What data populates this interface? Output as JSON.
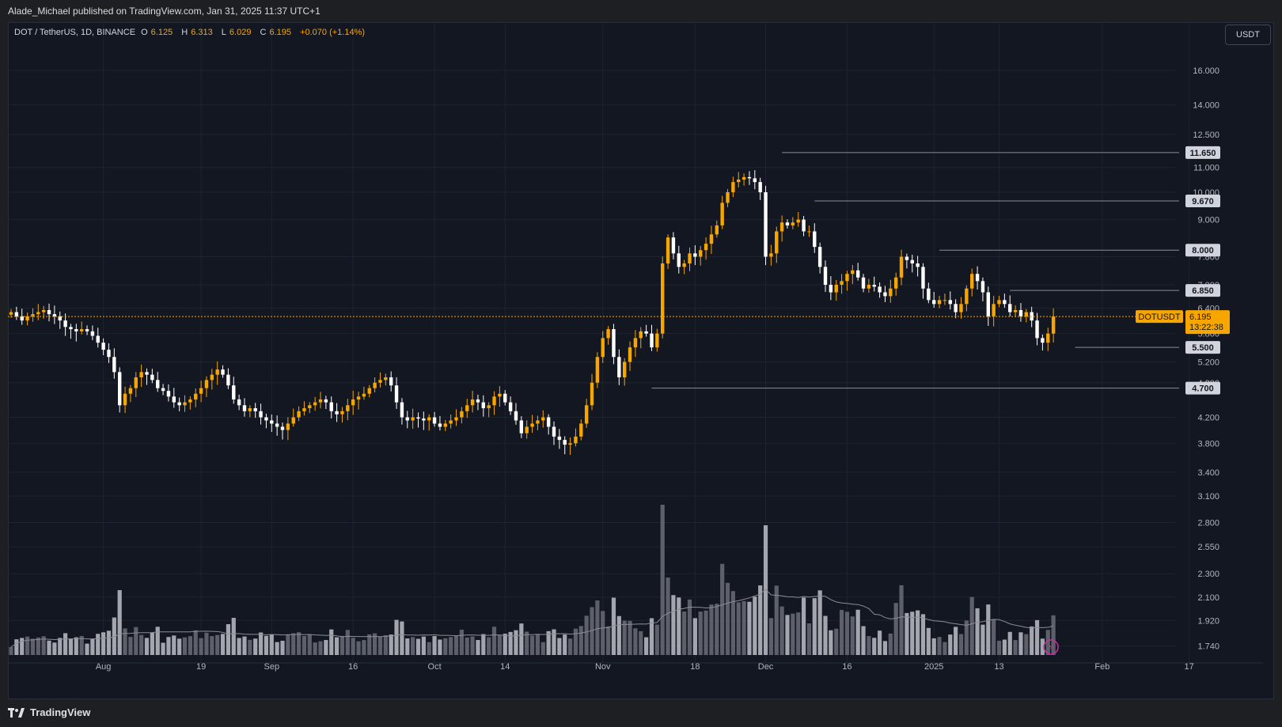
{
  "header": {
    "published_text": "Alade_Michael published on TradingView.com, Jan 31, 2025 11:37 UTC+1"
  },
  "legend": {
    "symbol": "DOT / TetherUS, 1D, BINANCE",
    "open_label": "O",
    "open": "6.125",
    "high_label": "H",
    "high": "6.313",
    "low_label": "L",
    "low": "6.029",
    "close_label": "C",
    "close": "6.195",
    "change": "+0.070 (+1.14%)"
  },
  "currency_button": "USDT",
  "footer": {
    "brand": "TradingView"
  },
  "colors": {
    "up": "#f7a600",
    "down": "#ffffff",
    "background": "#131722",
    "grid": "#1f2331",
    "level_line": "#8a8d96",
    "current_price": "#f7a600"
  },
  "chart_data": {
    "type": "candlestick",
    "symbol": "DOTUSDT",
    "y_scale": "log",
    "ylim": [
      1.64,
      18.4
    ],
    "y_ticks": [
      "16.000",
      "14.000",
      "12.500",
      "11.000",
      "10.000",
      "9.000",
      "7.800",
      "7.000",
      "6.400",
      "5.800",
      "5.200",
      "4.800",
      "4.200",
      "3.800",
      "3.400",
      "3.100",
      "2.800",
      "2.550",
      "2.300",
      "2.100",
      "1.920",
      "1.740"
    ],
    "x_tick_labels": [
      {
        "label": "Aug",
        "date": "2024-08-01"
      },
      {
        "label": "19",
        "date": "2024-08-19"
      },
      {
        "label": "Sep",
        "date": "2024-09-01"
      },
      {
        "label": "16",
        "date": "2024-09-16"
      },
      {
        "label": "Oct",
        "date": "2024-10-01"
      },
      {
        "label": "14",
        "date": "2024-10-14"
      },
      {
        "label": "Nov",
        "date": "2024-11-01"
      },
      {
        "label": "18",
        "date": "2024-11-18"
      },
      {
        "label": "Dec",
        "date": "2024-12-01"
      },
      {
        "label": "16",
        "date": "2024-12-16"
      },
      {
        "label": "2025",
        "date": "2025-01-01"
      },
      {
        "label": "13",
        "date": "2025-01-13"
      },
      {
        "label": "Feb",
        "date": "2025-02-01"
      },
      {
        "label": "17",
        "date": "2025-02-17"
      }
    ],
    "first_date": "2024-07-15",
    "last_date": "2025-01-31",
    "levels": [
      {
        "value": 11.65,
        "label": "11.650",
        "from_date": "2024-12-04"
      },
      {
        "value": 9.67,
        "label": "9.670",
        "from_date": "2024-12-10"
      },
      {
        "value": 8.0,
        "label": "8.000",
        "from_date": "2025-01-02"
      },
      {
        "value": 6.85,
        "label": "6.850",
        "from_date": "2025-01-15"
      },
      {
        "value": 5.5,
        "label": "5.500",
        "from_date": "2025-01-27"
      },
      {
        "value": 4.7,
        "label": "4.700",
        "from_date": "2024-11-10"
      }
    ],
    "current_price": {
      "ticker": "DOTUSDT",
      "value": "6.195",
      "countdown": "13:22:38"
    },
    "closes": [
      6.3,
      6.2,
      6.1,
      6.2,
      6.25,
      6.3,
      6.35,
      6.25,
      6.2,
      6.1,
      5.95,
      5.9,
      5.85,
      5.9,
      5.85,
      5.75,
      5.6,
      5.45,
      5.3,
      5.0,
      4.4,
      4.6,
      4.7,
      4.9,
      5.0,
      4.95,
      4.85,
      4.7,
      4.65,
      4.55,
      4.45,
      4.4,
      4.45,
      4.5,
      4.6,
      4.7,
      4.85,
      4.95,
      5.05,
      4.95,
      4.75,
      4.5,
      4.4,
      4.3,
      4.35,
      4.3,
      4.2,
      4.15,
      4.1,
      4.05,
      4.0,
      4.1,
      4.2,
      4.3,
      4.35,
      4.4,
      4.45,
      4.5,
      4.45,
      4.3,
      4.25,
      4.3,
      4.4,
      4.5,
      4.55,
      4.6,
      4.7,
      4.8,
      4.85,
      4.9,
      4.75,
      4.45,
      4.2,
      4.15,
      4.2,
      4.18,
      4.15,
      4.2,
      4.1,
      4.05,
      4.1,
      4.15,
      4.2,
      4.3,
      4.4,
      4.5,
      4.45,
      4.35,
      4.4,
      4.55,
      4.6,
      4.45,
      4.3,
      4.15,
      3.95,
      4.05,
      4.1,
      4.15,
      4.2,
      4.05,
      3.9,
      3.85,
      3.78,
      3.8,
      3.9,
      4.1,
      4.4,
      4.8,
      5.3,
      5.7,
      5.9,
      5.3,
      4.9,
      5.2,
      5.5,
      5.7,
      5.85,
      5.8,
      5.5,
      5.8,
      7.6,
      8.4,
      7.9,
      7.5,
      7.6,
      7.9,
      7.8,
      8.0,
      8.2,
      8.5,
      8.8,
      9.6,
      10.0,
      10.4,
      10.5,
      10.6,
      10.55,
      10.4,
      10.0,
      7.8,
      7.9,
      8.6,
      8.9,
      8.8,
      8.9,
      9.0,
      8.6,
      8.6,
      8.1,
      7.5,
      7.0,
      6.8,
      7.0,
      7.1,
      7.3,
      7.4,
      7.2,
      6.9,
      7.0,
      6.95,
      6.8,
      6.7,
      6.9,
      7.2,
      7.8,
      7.7,
      7.6,
      7.5,
      6.9,
      6.6,
      6.5,
      6.6,
      6.6,
      6.5,
      6.3,
      6.5,
      6.9,
      7.3,
      7.1,
      6.8,
      6.2,
      6.5,
      6.6,
      6.5,
      6.3,
      6.35,
      6.2,
      6.3,
      6.1,
      5.7,
      5.6,
      5.8,
      6.195
    ]
  }
}
